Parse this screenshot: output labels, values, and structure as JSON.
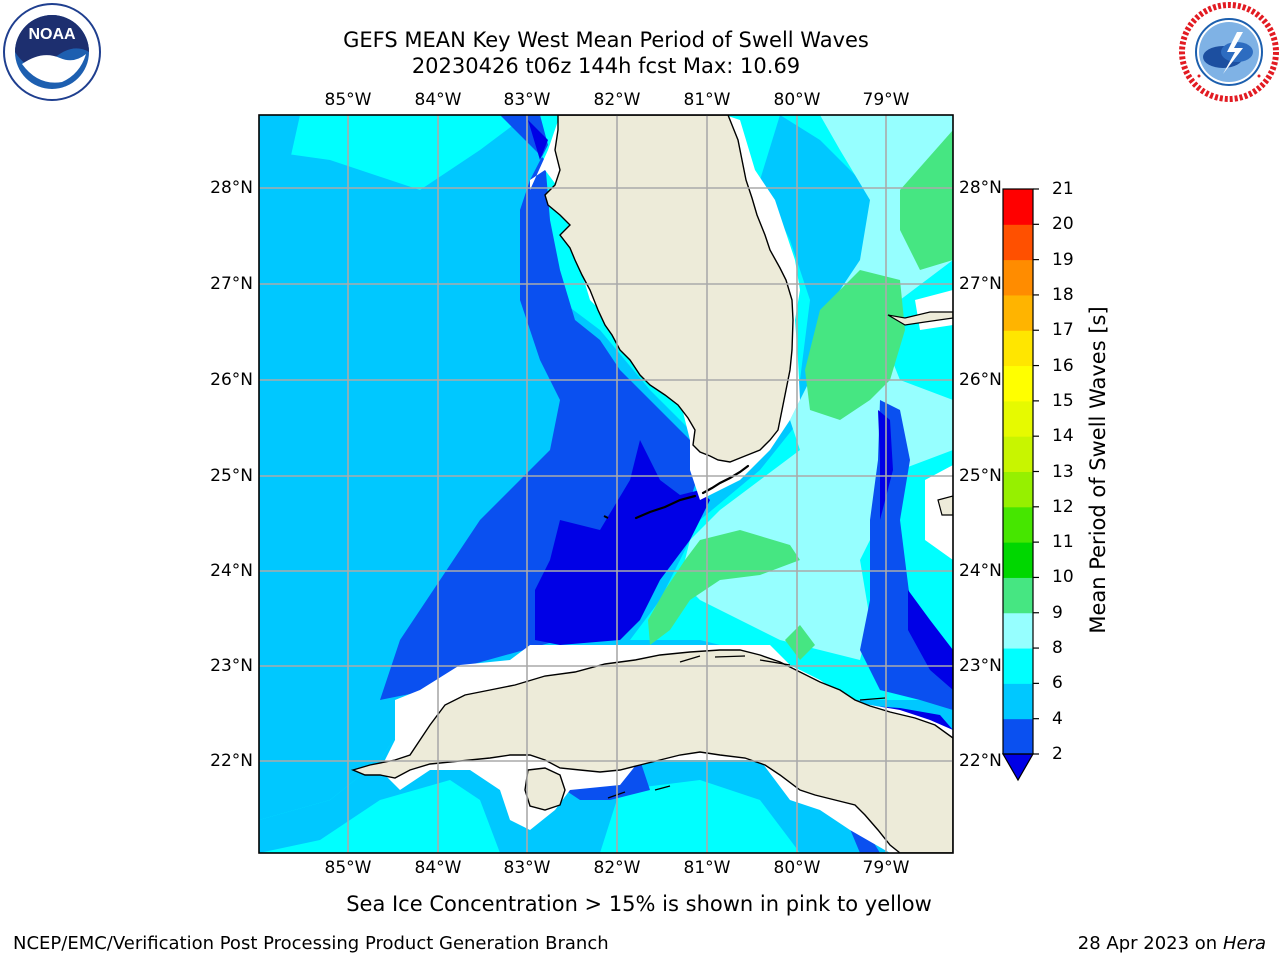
{
  "header": {
    "title_line1": "GEFS MEAN Key West Mean Period of Swell Waves",
    "title_line2": "20230426 t06z 144h fcst   Max: 10.69"
  },
  "logos": {
    "noaa_text": "NOAA",
    "noaa_ring_text": "NATIONAL OCEANIC AND ATMOSPHERIC ADMINISTRATION · U.S. DEPARTMENT OF COMMERCE",
    "nws_ring_text": "NATIONAL WEATHER SERVICE"
  },
  "map": {
    "lon_labels": [
      "85°W",
      "84°W",
      "83°W",
      "82°W",
      "81°W",
      "80°W",
      "79°W"
    ],
    "lat_labels": [
      "28°N",
      "27°N",
      "26°N",
      "25°N",
      "24°N",
      "23°N",
      "22°N"
    ],
    "extent": {
      "lon_min": -86.0,
      "lon_max": -78.3,
      "lat_min": 21.0,
      "lat_max": 28.8
    },
    "gridlines": true,
    "colors": {
      "land": "#edebd9",
      "coast": "#000000",
      "grid": "#aaaaaa",
      "no_data": "#ffffff"
    }
  },
  "colorbar": {
    "label": "Mean Period of Swell Waves [s]",
    "ticks": [
      "2",
      "4",
      "6",
      "8",
      "9",
      "10",
      "11",
      "12",
      "13",
      "14",
      "15",
      "16",
      "17",
      "18",
      "19",
      "20",
      "21"
    ],
    "colors": [
      "#0a50f0",
      "#00c8ff",
      "#00ffff",
      "#96ffff",
      "#46e682",
      "#00d700",
      "#46e600",
      "#96f000",
      "#c8f500",
      "#e6fa00",
      "#ffff00",
      "#ffe600",
      "#ffb400",
      "#ff8c00",
      "#ff5000",
      "#ff0000"
    ],
    "extend_color": "#0000e6"
  },
  "caption": "Sea Ice Concentration > 15% is shown in pink to yellow",
  "footer": {
    "left": "NCEP/EMC/Verification Post Processing Product Generation Branch",
    "right_date": "28 Apr 2023 on",
    "right_host": "Hera"
  }
}
